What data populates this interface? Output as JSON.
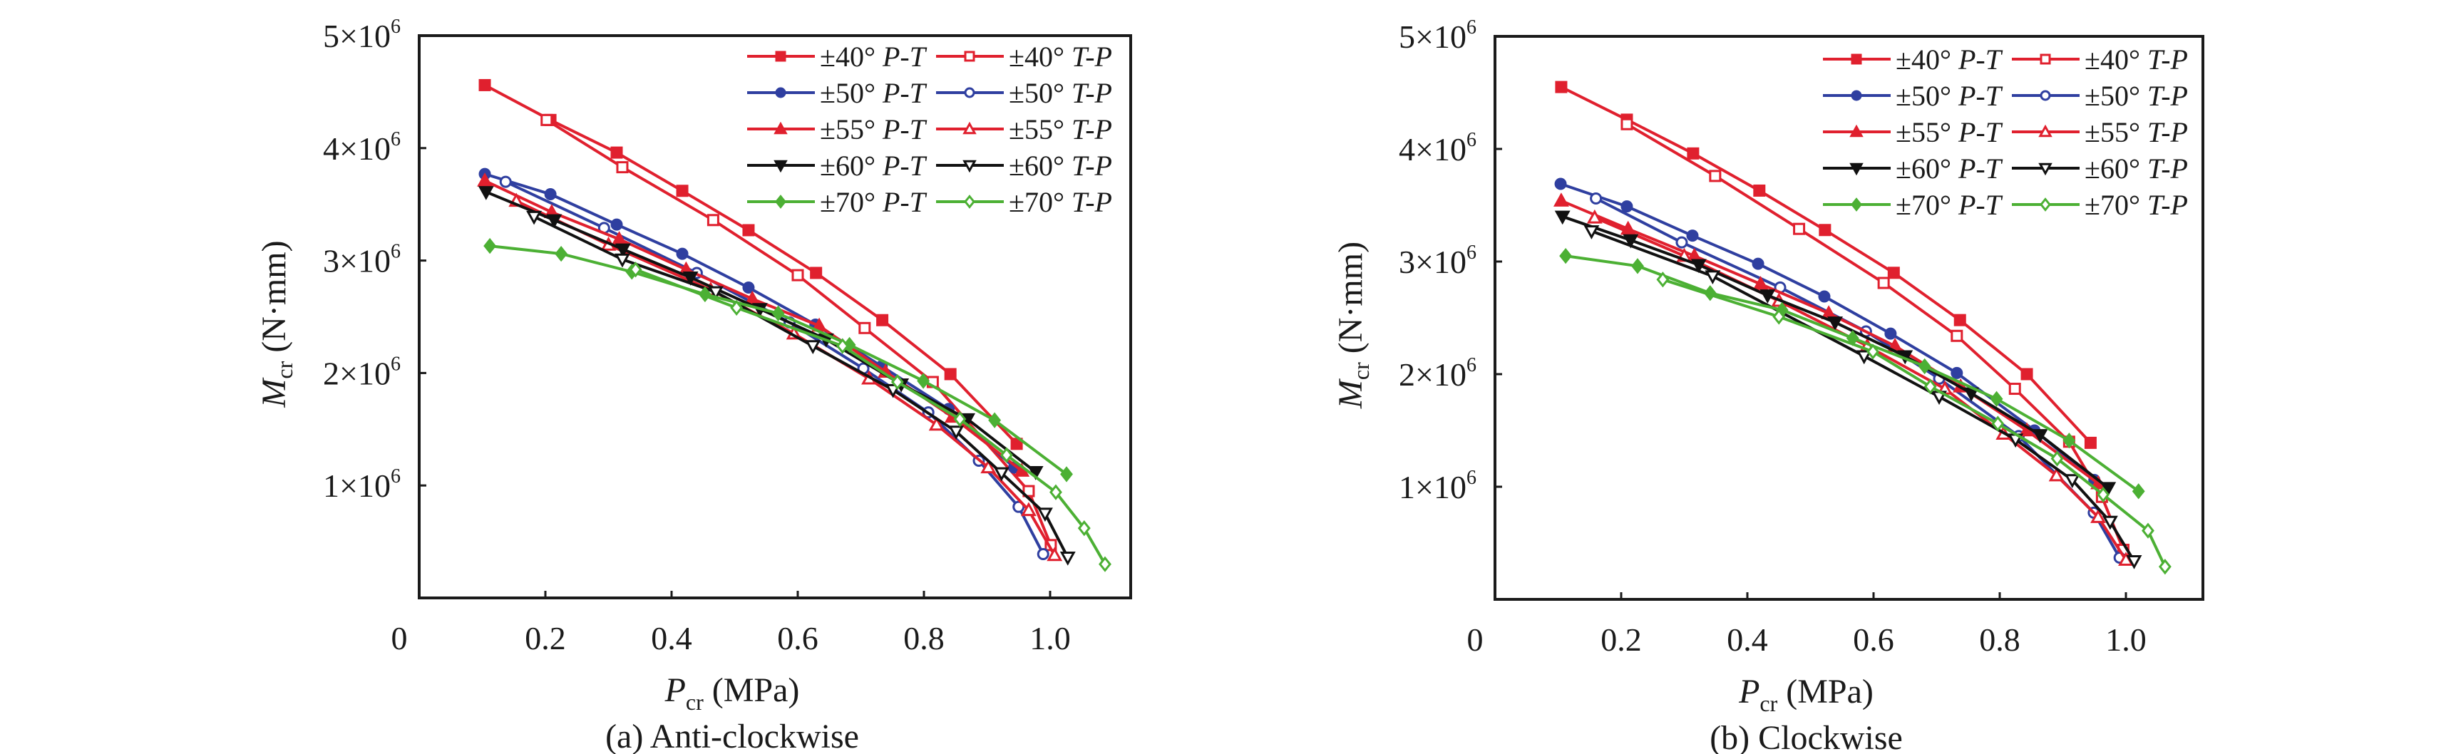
{
  "chart_data": [
    {
      "type": "line",
      "panel": "a",
      "caption": "(a) Anti-clockwise",
      "xlabel": "P_cr (MPa)",
      "ylabel": "M_cr (N·mm)",
      "xlim": [
        0,
        1.128
      ],
      "ylim": [
        0,
        5000000
      ],
      "x_ticks": [
        0.2,
        0.4,
        0.6,
        0.8,
        1.0
      ],
      "x_tick_labels": [
        "0.2",
        "0.4",
        "0.6",
        "0.8",
        "1.0"
      ],
      "origin_label": "0",
      "y_ticks": [
        1000000,
        2000000,
        3000000,
        4000000,
        5000000
      ],
      "y_tick_labels": [
        {
          "mant": "1×10",
          "exp": "6"
        },
        {
          "mant": "2×10",
          "exp": "6"
        },
        {
          "mant": "3×10",
          "exp": "6"
        },
        {
          "mant": "4×10",
          "exp": "6"
        },
        {
          "mant": "5×10",
          "exp": "6"
        }
      ],
      "grid": false,
      "legend_position": "top-right",
      "series": [
        {
          "name": "±40° P-T",
          "angle": "±40°",
          "mode": "P-T",
          "color": "#e0202e",
          "marker": "square",
          "filled": true,
          "points": [
            [
              0.104,
              4560000.0
            ],
            [
              0.208,
              4250000.0
            ],
            [
              0.313,
              3960000.0
            ],
            [
              0.417,
              3620000.0
            ],
            [
              0.522,
              3270000.0
            ],
            [
              0.629,
              2890000.0
            ],
            [
              0.734,
              2470000.0
            ],
            [
              0.842,
              1990000.0
            ],
            [
              0.947,
              1370000.0
            ]
          ]
        },
        {
          "name": "±40° T-P",
          "angle": "±40°",
          "mode": "T-P",
          "color": "#e0202e",
          "marker": "square",
          "filled": false,
          "points": [
            [
              0.202,
              4250000.0
            ],
            [
              0.322,
              3830000.0
            ],
            [
              0.466,
              3360000.0
            ],
            [
              0.6,
              2870000.0
            ],
            [
              0.706,
              2400000.0
            ],
            [
              0.814,
              1920000.0
            ],
            [
              0.966,
              950000.0
            ],
            [
              1.001,
              470000.0
            ]
          ]
        },
        {
          "name": "±50° P-T",
          "angle": "±50°",
          "mode": "P-T",
          "color": "#2f3fa0",
          "marker": "circle",
          "filled": true,
          "points": [
            [
              0.104,
              3770000.0
            ],
            [
              0.208,
              3590000.0
            ],
            [
              0.313,
              3320000.0
            ],
            [
              0.417,
              3060000.0
            ],
            [
              0.522,
              2760000.0
            ],
            [
              0.628,
              2430000.0
            ],
            [
              0.733,
              2060000.0
            ],
            [
              0.839,
              1680000.0
            ],
            [
              0.943,
              1160000.0
            ]
          ]
        },
        {
          "name": "±50° T-P",
          "angle": "±50°",
          "mode": "T-P",
          "color": "#2f3fa0",
          "marker": "circle",
          "filled": false,
          "points": [
            [
              0.137,
              3700000.0
            ],
            [
              0.293,
              3290000.0
            ],
            [
              0.44,
              2890000.0
            ],
            [
              0.587,
              2450000.0
            ],
            [
              0.704,
              2040000.0
            ],
            [
              0.807,
              1650000.0
            ],
            [
              0.887,
              1220000.0
            ],
            [
              0.95,
              810000.0
            ],
            [
              0.989,
              390000.0
            ]
          ]
        },
        {
          "name": "±55° P-T",
          "angle": "±55°",
          "mode": "P-T",
          "color": "#e0202e",
          "marker": "triangle-up",
          "filled": true,
          "points": [
            [
              0.104,
              3710000.0
            ],
            [
              0.21,
              3430000.0
            ],
            [
              0.317,
              3190000.0
            ],
            [
              0.423,
              2920000.0
            ],
            [
              0.528,
              2660000.0
            ],
            [
              0.634,
              2420000.0
            ],
            [
              0.739,
              2010000.0
            ],
            [
              0.845,
              1610000.0
            ],
            [
              0.955,
              1130000.0
            ]
          ]
        },
        {
          "name": "±55° T-P",
          "angle": "±55°",
          "mode": "T-P",
          "color": "#e0202e",
          "marker": "triangle-up",
          "filled": false,
          "points": [
            [
              0.154,
              3530000.0
            ],
            [
              0.3,
              3140000.0
            ],
            [
              0.462,
              2740000.0
            ],
            [
              0.594,
              2350000.0
            ],
            [
              0.713,
              1950000.0
            ],
            [
              0.82,
              1540000.0
            ],
            [
              0.902,
              1160000.0
            ],
            [
              0.966,
              780000.0
            ],
            [
              1.007,
              380000.0
            ]
          ]
        },
        {
          "name": "±60° P-T",
          "angle": "±60°",
          "mode": "P-T",
          "color": "#111111",
          "marker": "triangle-down",
          "filled": true,
          "points": [
            [
              0.106,
              3610000.0
            ],
            [
              0.214,
              3360000.0
            ],
            [
              0.323,
              3100000.0
            ],
            [
              0.43,
              2850000.0
            ],
            [
              0.54,
              2570000.0
            ],
            [
              0.645,
              2300000.0
            ],
            [
              0.764,
              1900000.0
            ],
            [
              0.869,
              1590000.0
            ],
            [
              0.977,
              1120000.0
            ]
          ]
        },
        {
          "name": "±60° T-P",
          "angle": "±60°",
          "mode": "T-P",
          "color": "#111111",
          "marker": "triangle-down",
          "filled": false,
          "points": [
            [
              0.182,
              3390000.0
            ],
            [
              0.322,
              3010000.0
            ],
            [
              0.47,
              2720000.0
            ],
            [
              0.624,
              2240000.0
            ],
            [
              0.751,
              1850000.0
            ],
            [
              0.851,
              1480000.0
            ],
            [
              0.923,
              1110000.0
            ],
            [
              0.992,
              750000.0
            ],
            [
              1.028,
              360000.0
            ]
          ]
        },
        {
          "name": "±70° P-T",
          "angle": "±70°",
          "mode": "P-T",
          "color": "#4cb034",
          "marker": "diamond",
          "filled": true,
          "points": [
            [
              0.112,
              3130000.0
            ],
            [
              0.225,
              3060000.0
            ],
            [
              0.337,
              2900000.0
            ],
            [
              0.453,
              2700000.0
            ],
            [
              0.569,
              2530000.0
            ],
            [
              0.682,
              2250000.0
            ],
            [
              0.799,
              1930000.0
            ],
            [
              0.912,
              1580000.0
            ],
            [
              1.026,
              1100000.0
            ]
          ]
        },
        {
          "name": "±70° T-P",
          "angle": "±70°",
          "mode": "T-P",
          "color": "#4cb034",
          "marker": "diamond",
          "filled": false,
          "points": [
            [
              0.343,
              2920000.0
            ],
            [
              0.503,
              2580000.0
            ],
            [
              0.671,
              2240000.0
            ],
            [
              0.758,
              1920000.0
            ],
            [
              0.857,
              1590000.0
            ],
            [
              0.931,
              1270000.0
            ],
            [
              1.009,
              940000.0
            ],
            [
              1.054,
              620000.0
            ],
            [
              1.087,
              300000.0
            ]
          ]
        }
      ]
    },
    {
      "type": "line",
      "panel": "b",
      "caption": "(b) Clockwise",
      "xlabel": "P_cr (MPa)",
      "ylabel": "M_cr (N·mm)",
      "xlim": [
        0,
        1.12
      ],
      "ylim": [
        0,
        5000000
      ],
      "x_ticks": [
        0.2,
        0.4,
        0.6,
        0.8,
        1.0
      ],
      "x_tick_labels": [
        "0.2",
        "0.4",
        "0.6",
        "0.8",
        "1.0"
      ],
      "origin_label": "0",
      "y_ticks": [
        1000000,
        2000000,
        3000000,
        4000000,
        5000000
      ],
      "y_tick_labels": [
        {
          "mant": "1×10",
          "exp": "6"
        },
        {
          "mant": "2×10",
          "exp": "6"
        },
        {
          "mant": "3×10",
          "exp": "6"
        },
        {
          "mant": "4×10",
          "exp": "6"
        },
        {
          "mant": "5×10",
          "exp": "6"
        }
      ],
      "grid": false,
      "legend_position": "top-right",
      "series": [
        {
          "name": "±40° P-T",
          "angle": "±40°",
          "mode": "P-T",
          "color": "#e0202e",
          "marker": "square",
          "filled": true,
          "points": [
            [
              0.105,
              4550000.0
            ],
            [
              0.209,
              4260000.0
            ],
            [
              0.314,
              3960000.0
            ],
            [
              0.419,
              3630000.0
            ],
            [
              0.523,
              3280000.0
            ],
            [
              0.632,
              2900000.0
            ],
            [
              0.737,
              2480000.0
            ],
            [
              0.843,
              2000000.0
            ],
            [
              0.944,
              1390000.0
            ]
          ]
        },
        {
          "name": "±40° T-P",
          "angle": "±40°",
          "mode": "T-P",
          "color": "#e0202e",
          "marker": "square",
          "filled": false,
          "points": [
            [
              0.209,
              4220000.0
            ],
            [
              0.349,
              3760000.0
            ],
            [
              0.482,
              3290000.0
            ],
            [
              0.616,
              2810000.0
            ],
            [
              0.732,
              2340000.0
            ],
            [
              0.824,
              1870000.0
            ],
            [
              0.91,
              1400000.0
            ],
            [
              0.962,
              910000.0
            ],
            [
              0.996,
              440000.0
            ]
          ]
        },
        {
          "name": "±50° P-T",
          "angle": "±50°",
          "mode": "P-T",
          "color": "#2f3fa0",
          "marker": "circle",
          "filled": true,
          "points": [
            [
              0.104,
              3690000.0
            ],
            [
              0.209,
              3490000.0
            ],
            [
              0.313,
              3230000.0
            ],
            [
              0.417,
              2980000.0
            ],
            [
              0.522,
              2690000.0
            ],
            [
              0.627,
              2360000.0
            ],
            [
              0.732,
              2010000.0
            ],
            [
              0.855,
              1500000.0
            ],
            [
              0.95,
              1060000.0
            ]
          ]
        },
        {
          "name": "±50° T-P",
          "angle": "±50°",
          "mode": "T-P",
          "color": "#2f3fa0",
          "marker": "circle",
          "filled": false,
          "points": [
            [
              0.16,
              3560000.0
            ],
            [
              0.296,
              3170000.0
            ],
            [
              0.452,
              2770000.0
            ],
            [
              0.588,
              2380000.0
            ],
            [
              0.704,
              1960000.0
            ],
            [
              0.83,
              1450000.0
            ],
            [
              0.949,
              770000.0
            ],
            [
              0.99,
              370000.0
            ]
          ]
        },
        {
          "name": "±55° P-T",
          "angle": "±55°",
          "mode": "P-T",
          "color": "#e0202e",
          "marker": "triangle-up",
          "filled": true,
          "points": [
            [
              0.105,
              3540000.0
            ],
            [
              0.211,
              3290000.0
            ],
            [
              0.316,
              3050000.0
            ],
            [
              0.421,
              2800000.0
            ],
            [
              0.529,
              2540000.0
            ],
            [
              0.634,
              2250000.0
            ],
            [
              0.738,
              1890000.0
            ],
            [
              0.843,
              1500000.0
            ],
            [
              0.956,
              1030000.0
            ]
          ]
        },
        {
          "name": "±55° T-P",
          "angle": "±55°",
          "mode": "T-P",
          "color": "#e0202e",
          "marker": "triangle-up",
          "filled": false,
          "points": [
            [
              0.158,
              3390000.0
            ],
            [
              0.3,
              3050000.0
            ],
            [
              0.45,
              2650000.0
            ],
            [
              0.59,
              2250000.0
            ],
            [
              0.713,
              1870000.0
            ],
            [
              0.806,
              1470000.0
            ],
            [
              0.89,
              1100000.0
            ],
            [
              0.956,
              730000.0
            ],
            [
              1.0,
              350000.0
            ]
          ]
        },
        {
          "name": "±60° P-T",
          "angle": "±60°",
          "mode": "P-T",
          "color": "#111111",
          "marker": "triangle-down",
          "filled": true,
          "points": [
            [
              0.107,
              3400000.0
            ],
            [
              0.215,
              3190000.0
            ],
            [
              0.323,
              2970000.0
            ],
            [
              0.432,
              2700000.0
            ],
            [
              0.539,
              2460000.0
            ],
            [
              0.65,
              2160000.0
            ],
            [
              0.755,
              1830000.0
            ],
            [
              0.864,
              1460000.0
            ],
            [
              0.972,
              990000.0
            ]
          ]
        },
        {
          "name": "±60° T-P",
          "angle": "±60°",
          "mode": "T-P",
          "color": "#111111",
          "marker": "triangle-down",
          "filled": false,
          "points": [
            [
              0.153,
              3270000.0
            ],
            [
              0.345,
              2870000.0
            ],
            [
              0.585,
              2160000.0
            ],
            [
              0.704,
              1800000.0
            ],
            [
              0.825,
              1420000.0
            ],
            [
              0.915,
              1060000.0
            ],
            [
              0.975,
              690000.0
            ],
            [
              1.013,
              340000.0
            ]
          ]
        },
        {
          "name": "±70° P-T",
          "angle": "±70°",
          "mode": "P-T",
          "color": "#4cb034",
          "marker": "diamond",
          "filled": true,
          "points": [
            [
              0.112,
              3050000.0
            ],
            [
              0.226,
              2960000.0
            ],
            [
              0.341,
              2720000.0
            ],
            [
              0.455,
              2570000.0
            ],
            [
              0.567,
              2320000.0
            ],
            [
              0.681,
              2070000.0
            ],
            [
              0.795,
              1780000.0
            ],
            [
              0.91,
              1410000.0
            ],
            [
              1.02,
              960000.0
            ]
          ]
        },
        {
          "name": "±70° T-P",
          "angle": "±70°",
          "mode": "T-P",
          "color": "#4cb034",
          "marker": "diamond",
          "filled": false,
          "points": [
            [
              0.266,
              2840000.0
            ],
            [
              0.45,
              2510000.0
            ],
            [
              0.599,
              2200000.0
            ],
            [
              0.69,
              1890000.0
            ],
            [
              0.797,
              1560000.0
            ],
            [
              0.891,
              1250000.0
            ],
            [
              0.964,
              930000.0
            ],
            [
              1.035,
              610000.0
            ],
            [
              1.062,
              290000.0
            ]
          ]
        }
      ]
    }
  ],
  "labels": {
    "ylabel_main": "M",
    "ylabel_sub": "cr",
    "ylabel_unit": " (N·mm)",
    "xlabel_main": "P",
    "xlabel_sub": "cr",
    "xlabel_unit": " (MPa)"
  }
}
